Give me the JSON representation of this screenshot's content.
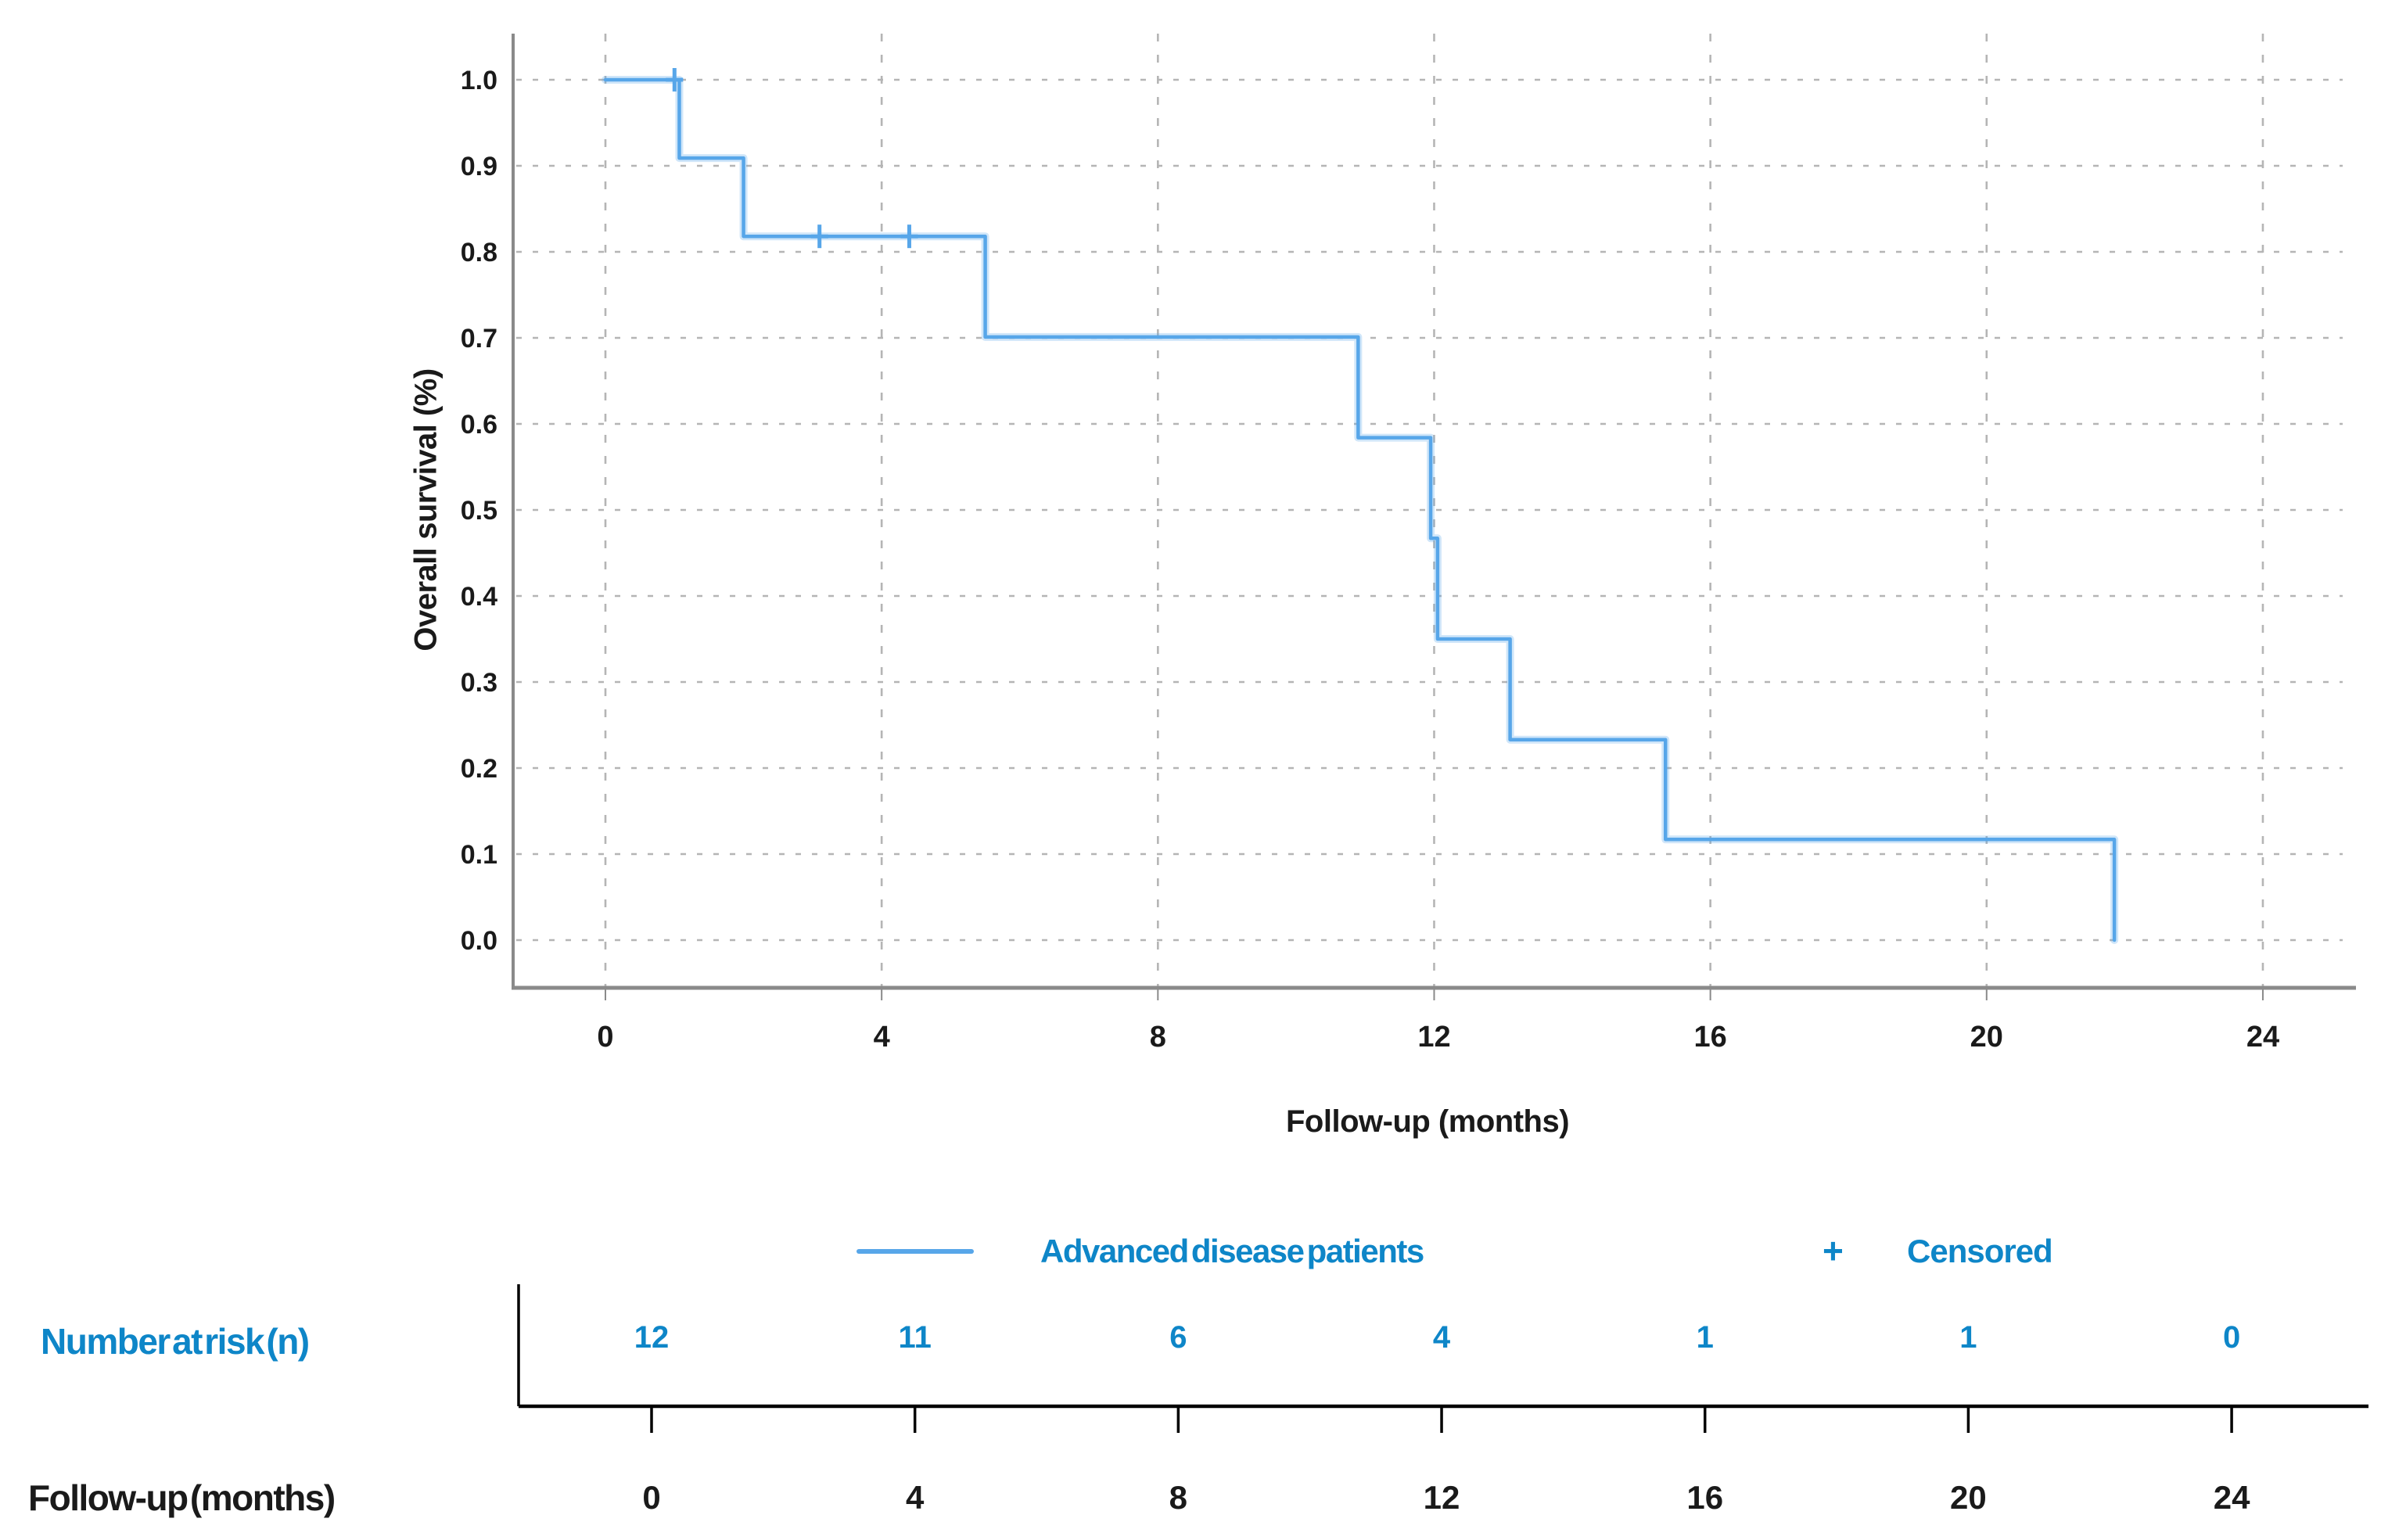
{
  "colors": {
    "curve": "#57a6e9",
    "accent_text": "#0e86c8",
    "axis_gray": "#8a8a8a",
    "grid_gray": "#b5b5b5",
    "tick_gray": "#8a8a8a",
    "text_black": "#1a1a1a",
    "risk_axis_black": "#000000"
  },
  "chart": {
    "ylabel": "Overall survival (%)",
    "xlabel": "Follow-up (months)",
    "ytick_labels": [
      "0.0",
      "0.1",
      "0.2",
      "0.3",
      "0.4",
      "0.5",
      "0.6",
      "0.7",
      "0.8",
      "0.9",
      "1.0"
    ],
    "xtick_labels": [
      "0",
      "4",
      "8",
      "12",
      "16",
      "20",
      "24"
    ]
  },
  "legend": {
    "series_label": "Advanced disease patients",
    "censored_symbol": "+",
    "censored_label": "Censored"
  },
  "risk_table": {
    "row_label": "Number at risk (n)",
    "xlabel": "Follow-up (months)",
    "times": [
      "0",
      "4",
      "8",
      "12",
      "16",
      "20",
      "24"
    ],
    "values": [
      "12",
      "11",
      "6",
      "4",
      "1",
      "1",
      "0"
    ]
  },
  "chart_data": {
    "type": "line",
    "subtype": "kaplan-meier-step-curve",
    "title": "",
    "xlabel": "Follow-up (months)",
    "ylabel": "Overall survival (%)",
    "xlim": [
      0,
      25
    ],
    "ylim": [
      0,
      1.0
    ],
    "xticks": [
      0,
      4,
      8,
      12,
      16,
      20,
      24
    ],
    "yticks": [
      0,
      0.1,
      0.2,
      0.3,
      0.4,
      0.5,
      0.6,
      0.7,
      0.8,
      0.9,
      1.0
    ],
    "grid": true,
    "legend_position": "bottom",
    "series": [
      {
        "name": "Advanced disease patients",
        "color": "#57a6e9",
        "step_points": [
          [
            0,
            1.0
          ],
          [
            1.07,
            1.0
          ],
          [
            1.07,
            0.909
          ],
          [
            2.0,
            0.909
          ],
          [
            2.0,
            0.818
          ],
          [
            5.5,
            0.818
          ],
          [
            5.5,
            0.701
          ],
          [
            10.9,
            0.701
          ],
          [
            10.9,
            0.584
          ],
          [
            11.95,
            0.584
          ],
          [
            11.95,
            0.467
          ],
          [
            12.05,
            0.467
          ],
          [
            12.05,
            0.35
          ],
          [
            13.1,
            0.35
          ],
          [
            13.1,
            0.233
          ],
          [
            15.35,
            0.233
          ],
          [
            15.35,
            0.117
          ],
          [
            21.85,
            0.117
          ],
          [
            21.85,
            0.0
          ]
        ]
      }
    ],
    "censored_marks": [
      [
        1.0,
        1.0
      ],
      [
        3.1,
        0.818
      ],
      [
        4.4,
        0.818
      ]
    ],
    "number_at_risk": {
      "label": "Number at risk (n)",
      "times": [
        0,
        4,
        8,
        12,
        16,
        20,
        24
      ],
      "values": [
        12,
        11,
        6,
        4,
        1,
        1,
        0
      ]
    }
  }
}
